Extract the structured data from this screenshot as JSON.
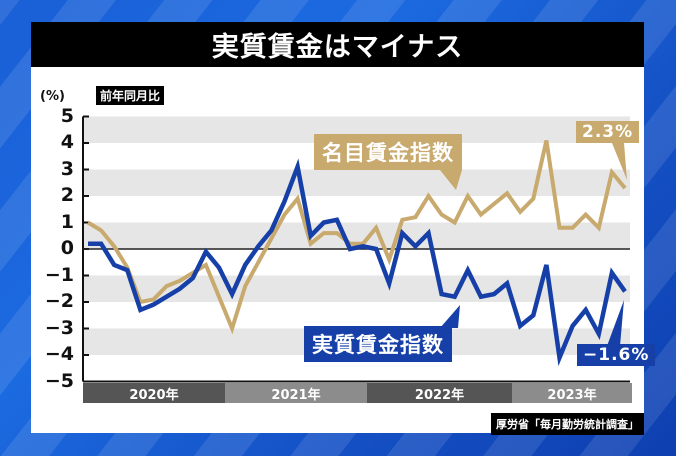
{
  "title": "実質賃金はマイナス",
  "unit_label": "(%)",
  "yoy_tag": "前年同月比",
  "source": "厚労省「毎月勤労統計調査」",
  "colors": {
    "nominal": "#c8a96e",
    "real": "#1640a8",
    "title_bg": "#000000",
    "stripe": "#e6e6e6",
    "year_dark": "#555555",
    "year_light": "#8c8c8c"
  },
  "callouts": {
    "nominal_label": "名目賃金指数",
    "real_label": "実質賃金指数",
    "nominal_last": "2.3%",
    "real_last": "−1.6%"
  },
  "years": [
    "2020年",
    "2021年",
    "2022年",
    "2023年"
  ],
  "chart_data": {
    "type": "line",
    "title": "実質賃金はマイナス",
    "ylabel": "(%) 前年同月比",
    "xlabel": "",
    "ylim": [
      -5,
      5
    ],
    "yticks": [
      5,
      4,
      3,
      2,
      1,
      0,
      -1,
      -2,
      -3,
      -4,
      -5
    ],
    "x": [
      "2020-01",
      "2020-02",
      "2020-03",
      "2020-04",
      "2020-05",
      "2020-06",
      "2020-07",
      "2020-08",
      "2020-09",
      "2020-10",
      "2020-11",
      "2020-12",
      "2021-01",
      "2021-02",
      "2021-03",
      "2021-04",
      "2021-05",
      "2021-06",
      "2021-07",
      "2021-08",
      "2021-09",
      "2021-10",
      "2021-11",
      "2021-12",
      "2022-01",
      "2022-02",
      "2022-03",
      "2022-04",
      "2022-05",
      "2022-06",
      "2022-07",
      "2022-08",
      "2022-09",
      "2022-10",
      "2022-11",
      "2022-12",
      "2023-01",
      "2023-02",
      "2023-03",
      "2023-04",
      "2023-05",
      "2023-06"
    ],
    "x_group_labels": [
      "2020年",
      "2021年",
      "2022年",
      "2023年"
    ],
    "series": [
      {
        "name": "名目賃金指数",
        "color": "#c8a96e",
        "values": [
          1.0,
          0.7,
          0.1,
          -0.7,
          -2.0,
          -1.9,
          -1.4,
          -1.2,
          -0.9,
          -0.6,
          -1.8,
          -3.0,
          -1.4,
          -0.5,
          0.4,
          1.3,
          1.9,
          0.2,
          0.6,
          0.6,
          0.2,
          0.2,
          0.8,
          -0.4,
          1.1,
          1.2,
          2.0,
          1.3,
          1.0,
          2.0,
          1.3,
          1.7,
          2.1,
          1.4,
          1.9,
          4.1,
          0.8,
          0.8,
          1.3,
          0.8,
          2.9,
          2.3
        ]
      },
      {
        "name": "実質賃金指数",
        "color": "#1640a8",
        "values": [
          0.2,
          0.2,
          -0.6,
          -0.8,
          -2.3,
          -2.1,
          -1.8,
          -1.5,
          -1.1,
          -0.1,
          -0.7,
          -1.7,
          -0.6,
          0.1,
          0.7,
          1.8,
          3.1,
          0.5,
          1.0,
          1.1,
          0.0,
          0.1,
          0.0,
          -1.3,
          0.6,
          0.1,
          0.6,
          -1.7,
          -1.8,
          -0.8,
          -1.8,
          -1.7,
          -1.3,
          -2.9,
          -2.5,
          -0.6,
          -4.1,
          -2.9,
          -2.3,
          -3.2,
          -0.9,
          -1.6
        ]
      }
    ],
    "annotations": [
      "名目賃金指数",
      "実質賃金指数",
      "2.3%",
      "−1.6%"
    ],
    "grid": "alternating horizontal bands",
    "legend": "inline callouts"
  }
}
